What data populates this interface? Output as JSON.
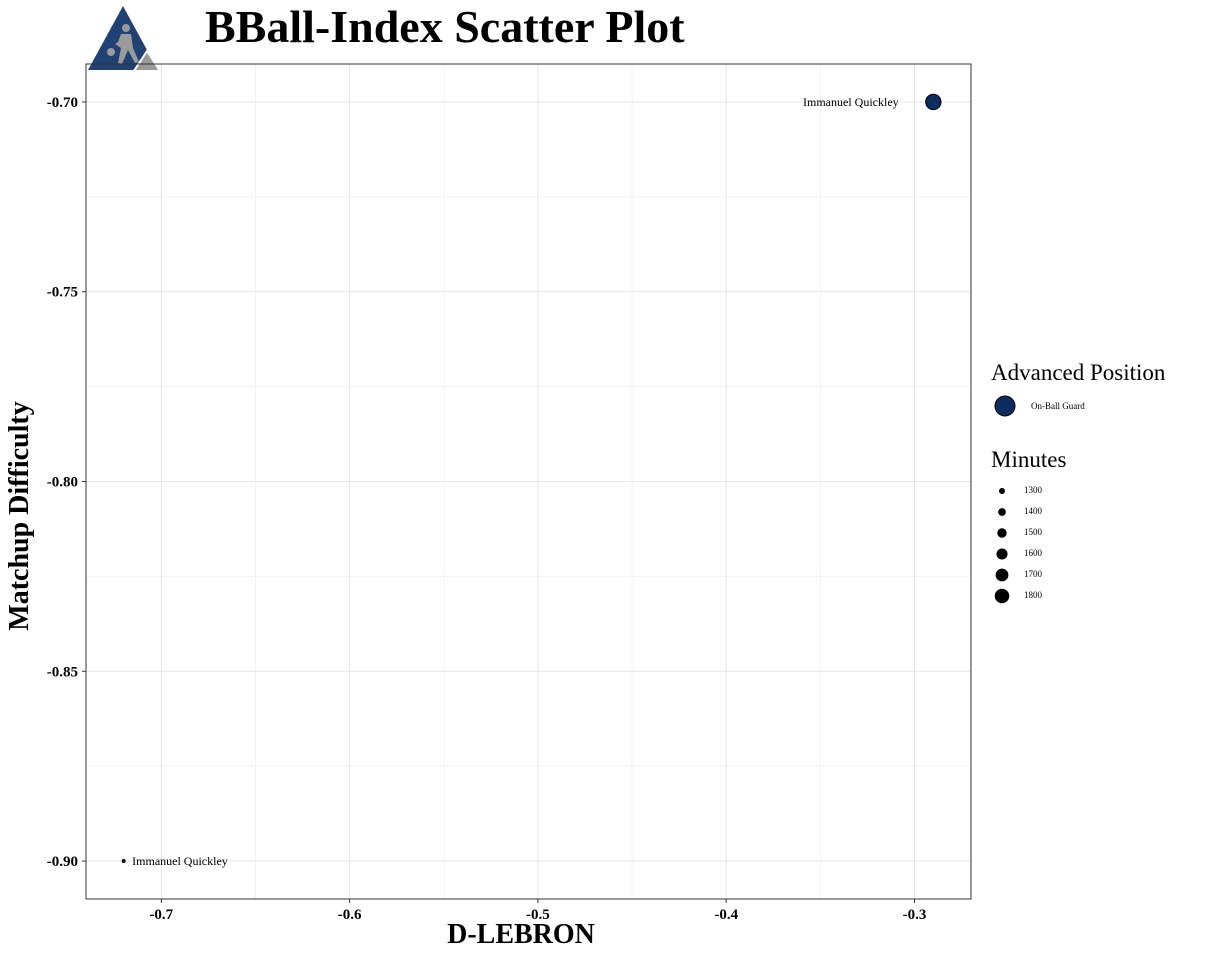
{
  "chart_data": {
    "type": "scatter",
    "title": "BBall-Index Scatter Plot",
    "xlabel": "D-LEBRON",
    "ylabel": "Matchup Difficulty",
    "xlim": [
      -0.74,
      -0.27
    ],
    "ylim": [
      -0.91,
      -0.69
    ],
    "x_ticks": [
      -0.7,
      -0.6,
      -0.5,
      -0.4,
      -0.3
    ],
    "x_tick_labels": [
      "-0.7",
      "-0.6",
      "-0.5",
      "-0.4",
      "-0.3"
    ],
    "y_ticks": [
      -0.7,
      -0.75,
      -0.8,
      -0.85,
      -0.9
    ],
    "y_tick_labels": [
      "-0.70",
      "-0.75",
      "-0.80",
      "-0.85",
      "-0.90"
    ],
    "grid": true,
    "legend_position": "right",
    "points": [
      {
        "label": "Immanuel Quickley",
        "x": -0.29,
        "y": -0.7,
        "minutes": 1850,
        "position": "On-Ball Guard"
      },
      {
        "label": "Immanuel Quickley",
        "x": -0.72,
        "y": -0.9,
        "minutes": 300,
        "position": "On-Ball Guard"
      }
    ],
    "legend_position_title": "Advanced Position",
    "legend_position_items": [
      {
        "label": "On-Ball    Guard",
        "color": "#0d2b5e"
      }
    ],
    "legend_size_title": "Minutes",
    "legend_size_items": [
      {
        "label": "1300",
        "value": 1300
      },
      {
        "label": "1400",
        "value": 1400
      },
      {
        "label": "1500",
        "value": 1500
      },
      {
        "label": "1600",
        "value": 1600
      },
      {
        "label": "1700",
        "value": 1700
      },
      {
        "label": "1800",
        "value": 1800
      }
    ],
    "colors": {
      "point": "#0d2b5e",
      "logo_primary": "#1f4173",
      "logo_secondary": "#9a9a9a",
      "grid": "#e6e6e6"
    }
  }
}
